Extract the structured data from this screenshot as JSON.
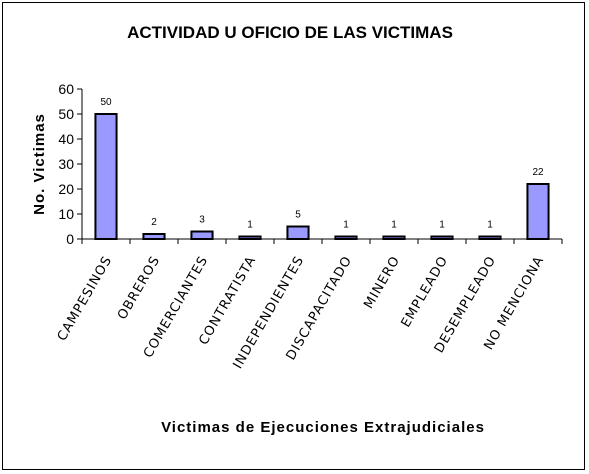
{
  "chart_data": {
    "type": "bar",
    "title": "ACTIVIDAD U OFICIO DE LAS VICTIMAS",
    "xlabel": "Victimas de Ejecuciones Extrajudiciales",
    "ylabel": "No. Victimas",
    "ylim": [
      0,
      60
    ],
    "yticks": [
      0,
      10,
      20,
      30,
      40,
      50,
      60
    ],
    "grid": false,
    "legend": "none",
    "bar_color": "#9999ff",
    "categories": [
      "CAMPESINOS",
      "OBREROS",
      "COMERCIANTES",
      "CONTRATISTA",
      "INDEPENDIENTES",
      "DISCAPACITADO",
      "MINERO",
      "EMPLEADO",
      "DESEMPLEADO",
      "NO MENCIONA"
    ],
    "values": [
      50,
      2,
      3,
      1,
      5,
      1,
      1,
      1,
      1,
      22
    ]
  }
}
